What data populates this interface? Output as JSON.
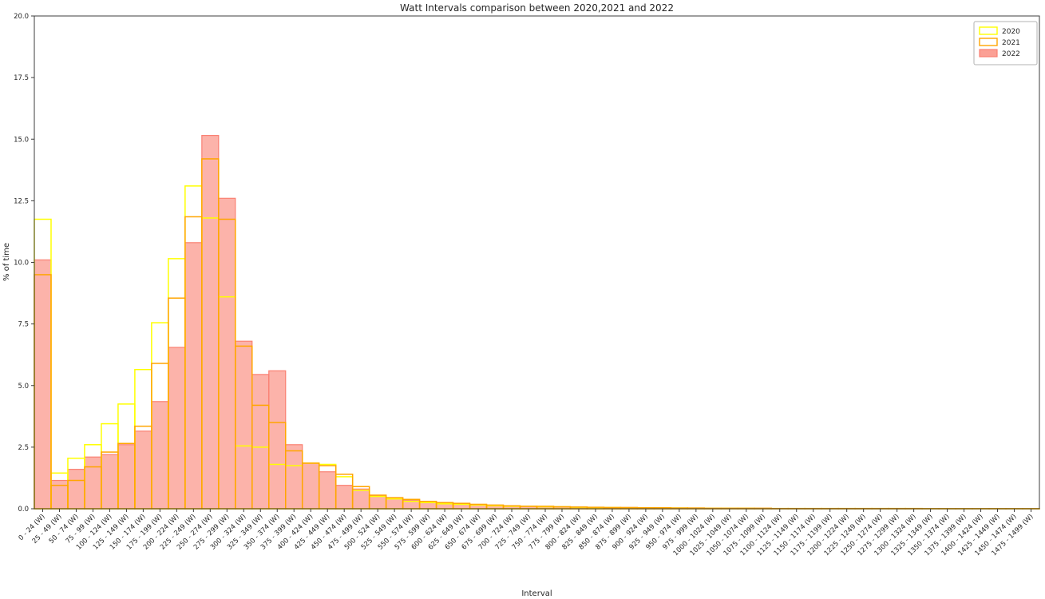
{
  "chart_data": {
    "type": "bar",
    "title": "Watt Intervals comparison between 2020,2021 and 2022",
    "xlabel": "Interval",
    "ylabel": "% of time",
    "ylim": [
      0,
      20
    ],
    "y_ticks": [
      0,
      2.5,
      5,
      7.5,
      10,
      12.5,
      15,
      17.5,
      20
    ],
    "grid": false,
    "legend_position": "upper right",
    "categories": [
      "0 - 24 (W)",
      "25 - 49 (W)",
      "50 - 74 (W)",
      "75 - 99 (W)",
      "100 - 124 (W)",
      "125 - 149 (W)",
      "150 - 174 (W)",
      "175 - 199 (W)",
      "200 - 224 (W)",
      "225 - 249 (W)",
      "250 - 274 (W)",
      "275 - 299 (W)",
      "300 - 324 (W)",
      "325 - 349 (W)",
      "350 - 374 (W)",
      "375 - 399 (W)",
      "400 - 424 (W)",
      "425 - 449 (W)",
      "450 - 474 (W)",
      "475 - 499 (W)",
      "500 - 524 (W)",
      "525 - 549 (W)",
      "550 - 574 (W)",
      "575 - 599 (W)",
      "600 - 624 (W)",
      "625 - 649 (W)",
      "650 - 674 (W)",
      "675 - 699 (W)",
      "700 - 724 (W)",
      "725 - 749 (W)",
      "750 - 774 (W)",
      "775 - 799 (W)",
      "800 - 824 (W)",
      "825 - 849 (W)",
      "850 - 874 (W)",
      "875 - 899 (W)",
      "900 - 924 (W)",
      "925 - 949 (W)",
      "950 - 974 (W)",
      "975 - 999 (W)",
      "1000 - 1024 (W)",
      "1025 - 1049 (W)",
      "1050 - 1074 (W)",
      "1075 - 1099 (W)",
      "1100 - 1124 (W)",
      "1125 - 1149 (W)",
      "1150 - 1174 (W)",
      "1175 - 1199 (W)",
      "1200 - 1224 (W)",
      "1225 - 1249 (W)",
      "1250 - 1274 (W)",
      "1275 - 1299 (W)",
      "1300 - 1324 (W)",
      "1325 - 1349 (W)",
      "1350 - 1374 (W)",
      "1375 - 1399 (W)",
      "1400 - 1424 (W)",
      "1425 - 1449 (W)",
      "1450 - 1474 (W)",
      "1475 - 1499 (W)"
    ],
    "series": [
      {
        "name": "2020",
        "color": "#ffff00",
        "style": "outline",
        "values": [
          11.75,
          1.45,
          2.05,
          2.6,
          3.45,
          4.25,
          5.65,
          7.55,
          10.15,
          13.1,
          11.8,
          8.6,
          2.55,
          2.5,
          1.8,
          1.75,
          1.85,
          1.8,
          1.3,
          0.75,
          0.5,
          0.4,
          0.3,
          0.25,
          0.2,
          0.18,
          0.15,
          0.12,
          0.1,
          0.1,
          0.08,
          0.08,
          0.06,
          0.05,
          0.05,
          0.04,
          0.04,
          0.03,
          0.03,
          0.02,
          0.02,
          0.02,
          0.02,
          0.01,
          0.01,
          0.01,
          0.01,
          0.01,
          0.01,
          0.01,
          0.01,
          0.01,
          0.01,
          0.005,
          0.005,
          0.005,
          0.005,
          0.005,
          0.005,
          0.005
        ]
      },
      {
        "name": "2021",
        "color": "#ffa500",
        "style": "outline",
        "values": [
          9.5,
          0.95,
          1.15,
          1.7,
          2.3,
          2.65,
          3.35,
          5.9,
          8.55,
          11.85,
          14.2,
          11.75,
          6.6,
          4.2,
          3.5,
          2.35,
          1.85,
          1.75,
          1.4,
          0.9,
          0.55,
          0.45,
          0.38,
          0.3,
          0.25,
          0.22,
          0.18,
          0.15,
          0.12,
          0.1,
          0.1,
          0.08,
          0.07,
          0.06,
          0.05,
          0.05,
          0.04,
          0.04,
          0.03,
          0.03,
          0.02,
          0.02,
          0.02,
          0.02,
          0.01,
          0.01,
          0.01,
          0.01,
          0.01,
          0.01,
          0.01,
          0.01,
          0.01,
          0.005,
          0.005,
          0.005,
          0.005,
          0.005,
          0.005,
          0.005
        ]
      },
      {
        "name": "2022",
        "color": "#fa8072",
        "style": "fill",
        "fill_opacity": 0.6,
        "values": [
          10.1,
          1.15,
          1.6,
          2.1,
          2.2,
          2.6,
          3.15,
          4.35,
          6.55,
          10.8,
          15.15,
          12.6,
          6.8,
          5.45,
          5.6,
          2.6,
          1.85,
          1.5,
          0.95,
          0.8,
          0.55,
          0.45,
          0.35,
          0.3,
          0.22,
          0.18,
          0.15,
          0.12,
          0.1,
          0.1,
          0.08,
          0.08,
          0.06,
          0.06,
          0.05,
          0.05,
          0.04,
          0.04,
          0.03,
          0.03,
          0.02,
          0.02,
          0.02,
          0.02,
          0.01,
          0.01,
          0.01,
          0.01,
          0.01,
          0.01,
          0.01,
          0.01,
          0.01,
          0.005,
          0.005,
          0.005,
          0.005,
          0.005,
          0.005,
          0.005
        ]
      }
    ]
  }
}
